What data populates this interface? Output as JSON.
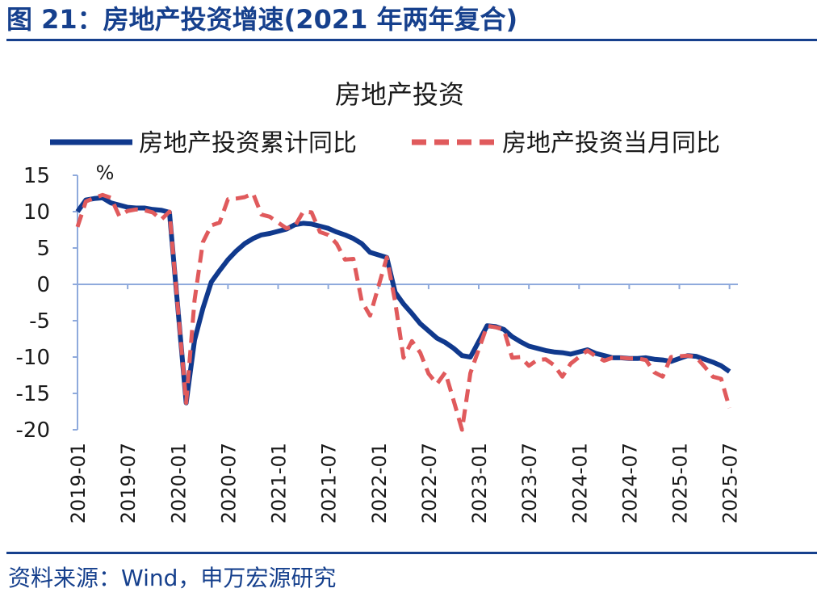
{
  "figure": {
    "title": "图 21：房地产投资增速(2021 年两年复合)",
    "source": "资料来源：Wind，申万宏源研究"
  },
  "colors": {
    "header": "#16408d",
    "cumulative": "#10398d",
    "monthly": "#e05a5c",
    "axis": "#8faadc"
  },
  "chart_data": {
    "type": "line",
    "title": "房地产投资",
    "unit_label": "%",
    "ylim": [
      -20,
      15
    ],
    "yticks": [
      -20,
      -15,
      -10,
      -5,
      0,
      5,
      10,
      15
    ],
    "grid": false,
    "legend_position": "top",
    "x_tick_labels": [
      "2019-01",
      "2019-07",
      "2020-01",
      "2020-07",
      "2021-01",
      "2021-07",
      "2022-01",
      "2022-07",
      "2023-01",
      "2023-07",
      "2024-01",
      "2024-07",
      "2025-01",
      "2025-07"
    ],
    "x": [
      "2019-01",
      "2019-02",
      "2019-03",
      "2019-04",
      "2019-05",
      "2019-06",
      "2019-07",
      "2019-08",
      "2019-09",
      "2019-10",
      "2019-11",
      "2019-12",
      "2020-01",
      "2020-02",
      "2020-03",
      "2020-04",
      "2020-05",
      "2020-06",
      "2020-07",
      "2020-08",
      "2020-09",
      "2020-10",
      "2020-11",
      "2020-12",
      "2021-01",
      "2021-02",
      "2021-03",
      "2021-04",
      "2021-05",
      "2021-06",
      "2021-07",
      "2021-08",
      "2021-09",
      "2021-10",
      "2021-11",
      "2021-12",
      "2022-01",
      "2022-02",
      "2022-03",
      "2022-04",
      "2022-05",
      "2022-06",
      "2022-07",
      "2022-08",
      "2022-09",
      "2022-10",
      "2022-11",
      "2022-12",
      "2023-01",
      "2023-02",
      "2023-03",
      "2023-04",
      "2023-05",
      "2023-06",
      "2023-07",
      "2023-08",
      "2023-09",
      "2023-10",
      "2023-11",
      "2023-12",
      "2024-01",
      "2024-02",
      "2024-03",
      "2024-04",
      "2024-05",
      "2024-06",
      "2024-07",
      "2024-08",
      "2024-09",
      "2024-10",
      "2024-11",
      "2024-12",
      "2025-01",
      "2025-02",
      "2025-03",
      "2025-04",
      "2025-05",
      "2025-06",
      "2025-07",
      "2025-08"
    ],
    "series": [
      {
        "name": "房地产投资累计同比",
        "style": "solid",
        "values": [
          10.0,
          11.6,
          11.8,
          11.9,
          11.2,
          10.9,
          10.6,
          10.5,
          10.5,
          10.3,
          10.2,
          9.9,
          null,
          -16.3,
          -7.7,
          -3.3,
          0.3,
          1.9,
          3.4,
          4.6,
          5.6,
          6.3,
          6.8,
          7.0,
          null,
          7.6,
          8.2,
          8.4,
          8.3,
          8.0,
          7.7,
          7.2,
          6.8,
          6.3,
          5.6,
          4.4,
          null,
          3.7,
          -1.1,
          -2.7,
          -4.0,
          -5.4,
          -6.4,
          -7.4,
          -8.0,
          -8.8,
          -9.8,
          -10.0,
          null,
          -5.7,
          -5.8,
          -6.2,
          -7.2,
          -7.9,
          -8.5,
          -8.8,
          -9.1,
          -9.3,
          -9.4,
          -9.6,
          null,
          -9.0,
          -9.5,
          -9.8,
          -10.1,
          -10.1,
          -10.2,
          -10.2,
          -10.1,
          -10.3,
          -10.4,
          -10.6,
          null,
          -9.8,
          -9.9,
          -10.3,
          -10.7,
          -11.2,
          -12.0,
          null
        ]
      },
      {
        "name": "房地产投资当月同比",
        "style": "dashed",
        "values": [
          7.9,
          11.4,
          11.9,
          12.3,
          11.9,
          9.4,
          10.1,
          10.3,
          10.2,
          9.9,
          8.9,
          10.0,
          null,
          -16.3,
          -2.2,
          5.8,
          8.1,
          8.5,
          11.7,
          11.8,
          12.0,
          12.5,
          9.6,
          9.3,
          null,
          7.7,
          8.0,
          10.0,
          9.9,
          7.2,
          6.8,
          5.6,
          3.4,
          3.5,
          -2.3,
          -4.3,
          null,
          3.7,
          -2.4,
          -10.1,
          -7.8,
          -9.4,
          -12.3,
          -13.7,
          -12.1,
          -16.0,
          -20.0,
          -12.2,
          null,
          -5.7,
          -5.9,
          -6.2,
          -10.1,
          -10.0,
          -11.2,
          -10.4,
          -10.3,
          -11.1,
          -12.7,
          -10.9,
          null,
          -9.1,
          -9.9,
          -10.5,
          -10.1,
          -10.1,
          -10.2,
          -10.2,
          -10.4,
          -12.1,
          -12.7,
          -10.0,
          null,
          -9.8,
          -10.0,
          -11.3,
          -12.7,
          -13.0,
          -17.0,
          null
        ]
      }
    ]
  }
}
